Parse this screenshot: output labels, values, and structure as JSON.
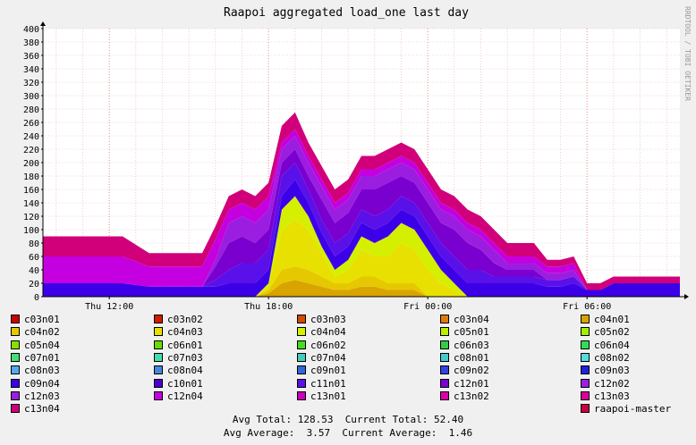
{
  "chart_data": {
    "type": "area",
    "stacked": true,
    "title": "Raapoi aggregated load_one last day",
    "watermark": "RRDTOOL / TOBI OETIKER",
    "ylim": [
      0,
      400
    ],
    "yticks": [
      0,
      20,
      40,
      60,
      80,
      100,
      120,
      140,
      160,
      180,
      200,
      220,
      240,
      260,
      280,
      300,
      320,
      340,
      360,
      380,
      400
    ],
    "xlim": [
      0,
      24
    ],
    "x_unit": "hours since start of window (≈ Thu 09:30)",
    "xticks": [
      {
        "x": 2.5,
        "label": "Thu 12:00"
      },
      {
        "x": 8.5,
        "label": "Thu 18:00"
      },
      {
        "x": 14.5,
        "label": "Fri 00:00"
      },
      {
        "x": 20.5,
        "label": "Fri 06:00"
      }
    ],
    "grid": true,
    "background": "#ffffff",
    "x": [
      0,
      1,
      2,
      3,
      4,
      5,
      6,
      6.5,
      7,
      7.5,
      8,
      8.5,
      9,
      9.5,
      10,
      10.5,
      11,
      11.5,
      12,
      12.5,
      13,
      13.5,
      14,
      14.5,
      15,
      15.5,
      16,
      16.5,
      17,
      17.5,
      18,
      18.5,
      19,
      19.5,
      20,
      20.5,
      21,
      21.5,
      22,
      22.5,
      23,
      24
    ],
    "series": [
      {
        "name": "c04n01",
        "color": "#d9a400",
        "values": [
          0,
          0,
          0,
          0,
          0,
          0,
          0,
          0,
          0,
          0,
          0,
          5,
          20,
          25,
          20,
          15,
          10,
          10,
          15,
          15,
          10,
          10,
          10,
          0,
          0,
          0,
          0,
          0,
          0,
          0,
          0,
          0,
          0,
          0,
          0,
          0,
          0,
          0,
          0,
          0,
          0,
          0
        ]
      },
      {
        "name": "c04n02",
        "color": "#e6c800",
        "values": [
          0,
          0,
          0,
          0,
          0,
          0,
          0,
          0,
          0,
          0,
          0,
          5,
          20,
          20,
          20,
          15,
          10,
          10,
          15,
          15,
          10,
          10,
          10,
          0,
          0,
          0,
          0,
          0,
          0,
          0,
          0,
          0,
          0,
          0,
          0,
          0,
          0,
          0,
          0,
          0,
          0,
          0
        ]
      },
      {
        "name": "c04n03",
        "color": "#e8e000",
        "values": [
          0,
          0,
          0,
          0,
          0,
          0,
          0,
          0,
          0,
          0,
          0,
          5,
          60,
          70,
          60,
          35,
          10,
          20,
          40,
          30,
          40,
          60,
          50,
          40,
          20,
          10,
          0,
          0,
          0,
          0,
          0,
          0,
          0,
          0,
          0,
          0,
          0,
          0,
          0,
          0,
          0,
          0
        ]
      },
      {
        "name": "c04n04",
        "color": "#d4f000",
        "values": [
          0,
          0,
          0,
          0,
          0,
          0,
          0,
          0,
          0,
          0,
          0,
          5,
          30,
          35,
          20,
          10,
          10,
          15,
          20,
          20,
          30,
          30,
          30,
          30,
          20,
          10,
          0,
          0,
          0,
          0,
          0,
          0,
          0,
          0,
          0,
          0,
          0,
          0,
          0,
          0,
          0,
          0
        ]
      },
      {
        "name": "c09n04",
        "color": "#3c00e8",
        "values": [
          20,
          20,
          20,
          20,
          15,
          15,
          15,
          15,
          20,
          20,
          20,
          20,
          20,
          25,
          20,
          20,
          20,
          20,
          20,
          20,
          20,
          20,
          20,
          20,
          20,
          20,
          20,
          20,
          20,
          20,
          20,
          20,
          15,
          15,
          20,
          10,
          10,
          20,
          20,
          20,
          20,
          20
        ]
      },
      {
        "name": "c11n01",
        "color": "#5a10e8",
        "values": [
          0,
          0,
          0,
          0,
          0,
          0,
          0,
          10,
          20,
          30,
          30,
          30,
          30,
          25,
          20,
          20,
          20,
          20,
          20,
          20,
          20,
          20,
          20,
          20,
          20,
          20,
          20,
          20,
          10,
          10,
          10,
          10,
          10,
          10,
          10,
          0,
          0,
          0,
          0,
          0,
          0,
          0
        ]
      },
      {
        "name": "c12n01",
        "color": "#7a00d0",
        "values": [
          0,
          0,
          0,
          0,
          0,
          0,
          0,
          20,
          40,
          40,
          30,
          30,
          20,
          20,
          20,
          30,
          30,
          30,
          30,
          40,
          40,
          30,
          30,
          30,
          30,
          40,
          40,
          30,
          20,
          10,
          10,
          10,
          0,
          0,
          0,
          0,
          0,
          0,
          0,
          0,
          0,
          0
        ]
      },
      {
        "name": "c12n02",
        "color": "#9b1ee0",
        "values": [
          0,
          0,
          0,
          0,
          0,
          0,
          0,
          10,
          30,
          30,
          30,
          30,
          20,
          20,
          20,
          20,
          20,
          20,
          20,
          20,
          20,
          20,
          20,
          20,
          20,
          20,
          20,
          20,
          20,
          10,
          10,
          10,
          10,
          10,
          10,
          0,
          0,
          0,
          0,
          0,
          0,
          0
        ]
      },
      {
        "name": "c12n04",
        "color": "#c400e0",
        "values": [
          40,
          40,
          40,
          40,
          30,
          30,
          30,
          30,
          20,
          20,
          20,
          20,
          10,
          10,
          10,
          10,
          10,
          10,
          10,
          10,
          10,
          10,
          10,
          10,
          10,
          10,
          10,
          10,
          10,
          10,
          10,
          10,
          10,
          10,
          10,
          0,
          0,
          0,
          0,
          0,
          0,
          0
        ]
      },
      {
        "name": "c13n04",
        "color": "#d1007a",
        "values": [
          30,
          30,
          30,
          30,
          20,
          20,
          20,
          20,
          20,
          20,
          20,
          20,
          25,
          25,
          20,
          20,
          20,
          20,
          20,
          20,
          20,
          20,
          20,
          20,
          20,
          20,
          20,
          20,
          20,
          20,
          20,
          20,
          10,
          10,
          10,
          10,
          10,
          10,
          10,
          10,
          10,
          10
        ]
      }
    ]
  },
  "legend": [
    {
      "label": "c03n01",
      "color": "#cc0000"
    },
    {
      "label": "c03n02",
      "color": "#d11a00"
    },
    {
      "label": "c03n03",
      "color": "#d14a00"
    },
    {
      "label": "c03n04",
      "color": "#e07a10"
    },
    {
      "label": "c04n01",
      "color": "#d9a400"
    },
    {
      "label": "c04n02",
      "color": "#e6c800"
    },
    {
      "label": "c04n03",
      "color": "#e8e000"
    },
    {
      "label": "c04n04",
      "color": "#d4f000"
    },
    {
      "label": "c05n01",
      "color": "#b8f000"
    },
    {
      "label": "c05n02",
      "color": "#a0f000"
    },
    {
      "label": "c05n04",
      "color": "#88e000"
    },
    {
      "label": "c06n01",
      "color": "#66dd00"
    },
    {
      "label": "c06n02",
      "color": "#44dd22"
    },
    {
      "label": "c06n03",
      "color": "#33cc44"
    },
    {
      "label": "c06n04",
      "color": "#33dd55"
    },
    {
      "label": "c07n01",
      "color": "#44dd77"
    },
    {
      "label": "c07n03",
      "color": "#44ddaa"
    },
    {
      "label": "c07n04",
      "color": "#44ccbb"
    },
    {
      "label": "c08n01",
      "color": "#44cccc"
    },
    {
      "label": "c08n02",
      "color": "#55dddd"
    },
    {
      "label": "c08n03",
      "color": "#55aaee"
    },
    {
      "label": "c08n04",
      "color": "#4488dd"
    },
    {
      "label": "c09n01",
      "color": "#3366dd"
    },
    {
      "label": "c09n02",
      "color": "#3344dd"
    },
    {
      "label": "c09n03",
      "color": "#2222dd"
    },
    {
      "label": "c09n04",
      "color": "#3c00e8"
    },
    {
      "label": "c10n01",
      "color": "#4a00cc"
    },
    {
      "label": "c11n01",
      "color": "#5a10e8"
    },
    {
      "label": "c12n01",
      "color": "#7a00d0"
    },
    {
      "label": "c12n02",
      "color": "#9b1ee0"
    },
    {
      "label": "c12n03",
      "color": "#9b1ee0"
    },
    {
      "label": "c12n04",
      "color": "#c400e0"
    },
    {
      "label": "c13n01",
      "color": "#cc00bb"
    },
    {
      "label": "c13n02",
      "color": "#dd00aa"
    },
    {
      "label": "c13n03",
      "color": "#dd0099"
    },
    {
      "label": "c13n04",
      "color": "#d1007a"
    },
    {
      "label": "raapoi-master",
      "color": "#cc0044"
    }
  ],
  "totals": {
    "line1": "Avg Total: 128.53  Current Total: 52.40",
    "line2": "Avg Average:  3.57  Current Average:  1.46"
  }
}
